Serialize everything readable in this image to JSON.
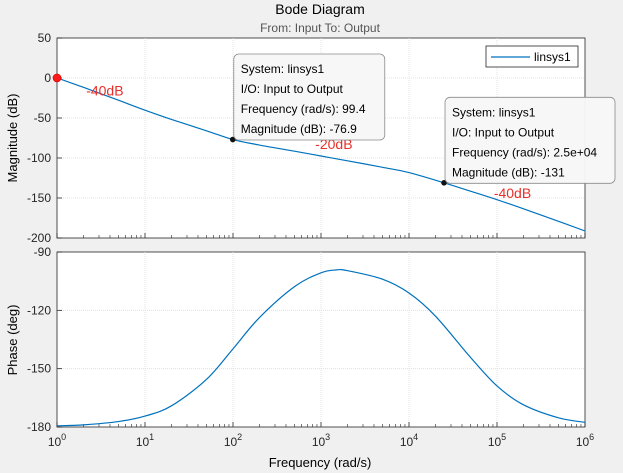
{
  "chart_data": {
    "type": "line",
    "title": "Bode Diagram",
    "subtitle": "From: Input  To: Output",
    "xlabel": "Frequency  (rad/s)",
    "x_scale": "log",
    "xlim": [
      1,
      1000000
    ],
    "x_ticks": [
      {
        "value": 1,
        "base": "10",
        "exp": "0"
      },
      {
        "value": 10,
        "base": "10",
        "exp": "1"
      },
      {
        "value": 100,
        "base": "10",
        "exp": "2"
      },
      {
        "value": 1000,
        "base": "10",
        "exp": "3"
      },
      {
        "value": 10000,
        "base": "10",
        "exp": "4"
      },
      {
        "value": 100000,
        "base": "10",
        "exp": "5"
      },
      {
        "value": 1000000,
        "base": "10",
        "exp": "6"
      }
    ],
    "legend": {
      "label": "linsys1",
      "placement": "top-right"
    },
    "series_color": "#0072bd",
    "annotation_color": "#e8302a",
    "magnitude": {
      "ylabel": "Magnitude (dB)",
      "ylim": [
        -200,
        50
      ],
      "y_ticks": [
        50,
        0,
        -50,
        -100,
        -150,
        -200
      ],
      "series": [
        {
          "name": "linsys1",
          "x": [
            1,
            2,
            5,
            10,
            20,
            50,
            99.4,
            200,
            500,
            1000,
            2000,
            5000,
            10000,
            25000,
            50000,
            100000,
            200000,
            500000,
            1000000
          ],
          "y": [
            0.1,
            -11.7,
            -27.8,
            -40.2,
            -51.8,
            -66.0,
            -76.9,
            -83.8,
            -91.5,
            -97.5,
            -103.5,
            -111.6,
            -118.2,
            -131.0,
            -141.5,
            -152.1,
            -163.5,
            -179.1,
            -191.2
          ]
        }
      ],
      "marker": {
        "x": 1,
        "y": 0.1
      },
      "annotations": [
        {
          "text": "-40dB",
          "x": 3.5,
          "y": -22
        },
        {
          "text": "-20dB",
          "x": 1400,
          "y": -89
        },
        {
          "text": "-40dB",
          "x": 150000,
          "y": -150
        }
      ],
      "datatips": [
        {
          "x": 99.4,
          "y": -76.9,
          "position": "upper-right",
          "lines": [
            "System: linsys1",
            "I/O: Input to Output",
            "Frequency (rad/s): 99.4",
            "Magnitude (dB): -76.9"
          ]
        },
        {
          "x": 25000,
          "y": -131,
          "position": "upper-right",
          "lines": [
            "System: linsys1",
            "I/O: Input to Output",
            "Frequency (rad/s): 2.5e+04",
            "Magnitude (dB): -131"
          ]
        }
      ]
    },
    "phase": {
      "ylabel": "Phase (deg)",
      "ylim": [
        -180,
        -90
      ],
      "y_ticks": [
        -90,
        -120,
        -150,
        -180
      ],
      "series": [
        {
          "name": "linsys1",
          "x": [
            1,
            2,
            5,
            10,
            20,
            50,
            100,
            200,
            500,
            1000,
            1500,
            2000,
            5000,
            10000,
            20000,
            50000,
            100000,
            200000,
            500000,
            1000000
          ],
          "y": [
            -179.4,
            -178.9,
            -177.2,
            -174.4,
            -169.1,
            -155.5,
            -139.8,
            -123.7,
            -107.8,
            -100.7,
            -99.2,
            -99.6,
            -104.0,
            -111.1,
            -123.0,
            -144.2,
            -158.9,
            -168.6,
            -175.3,
            -177.6
          ]
        }
      ]
    }
  }
}
